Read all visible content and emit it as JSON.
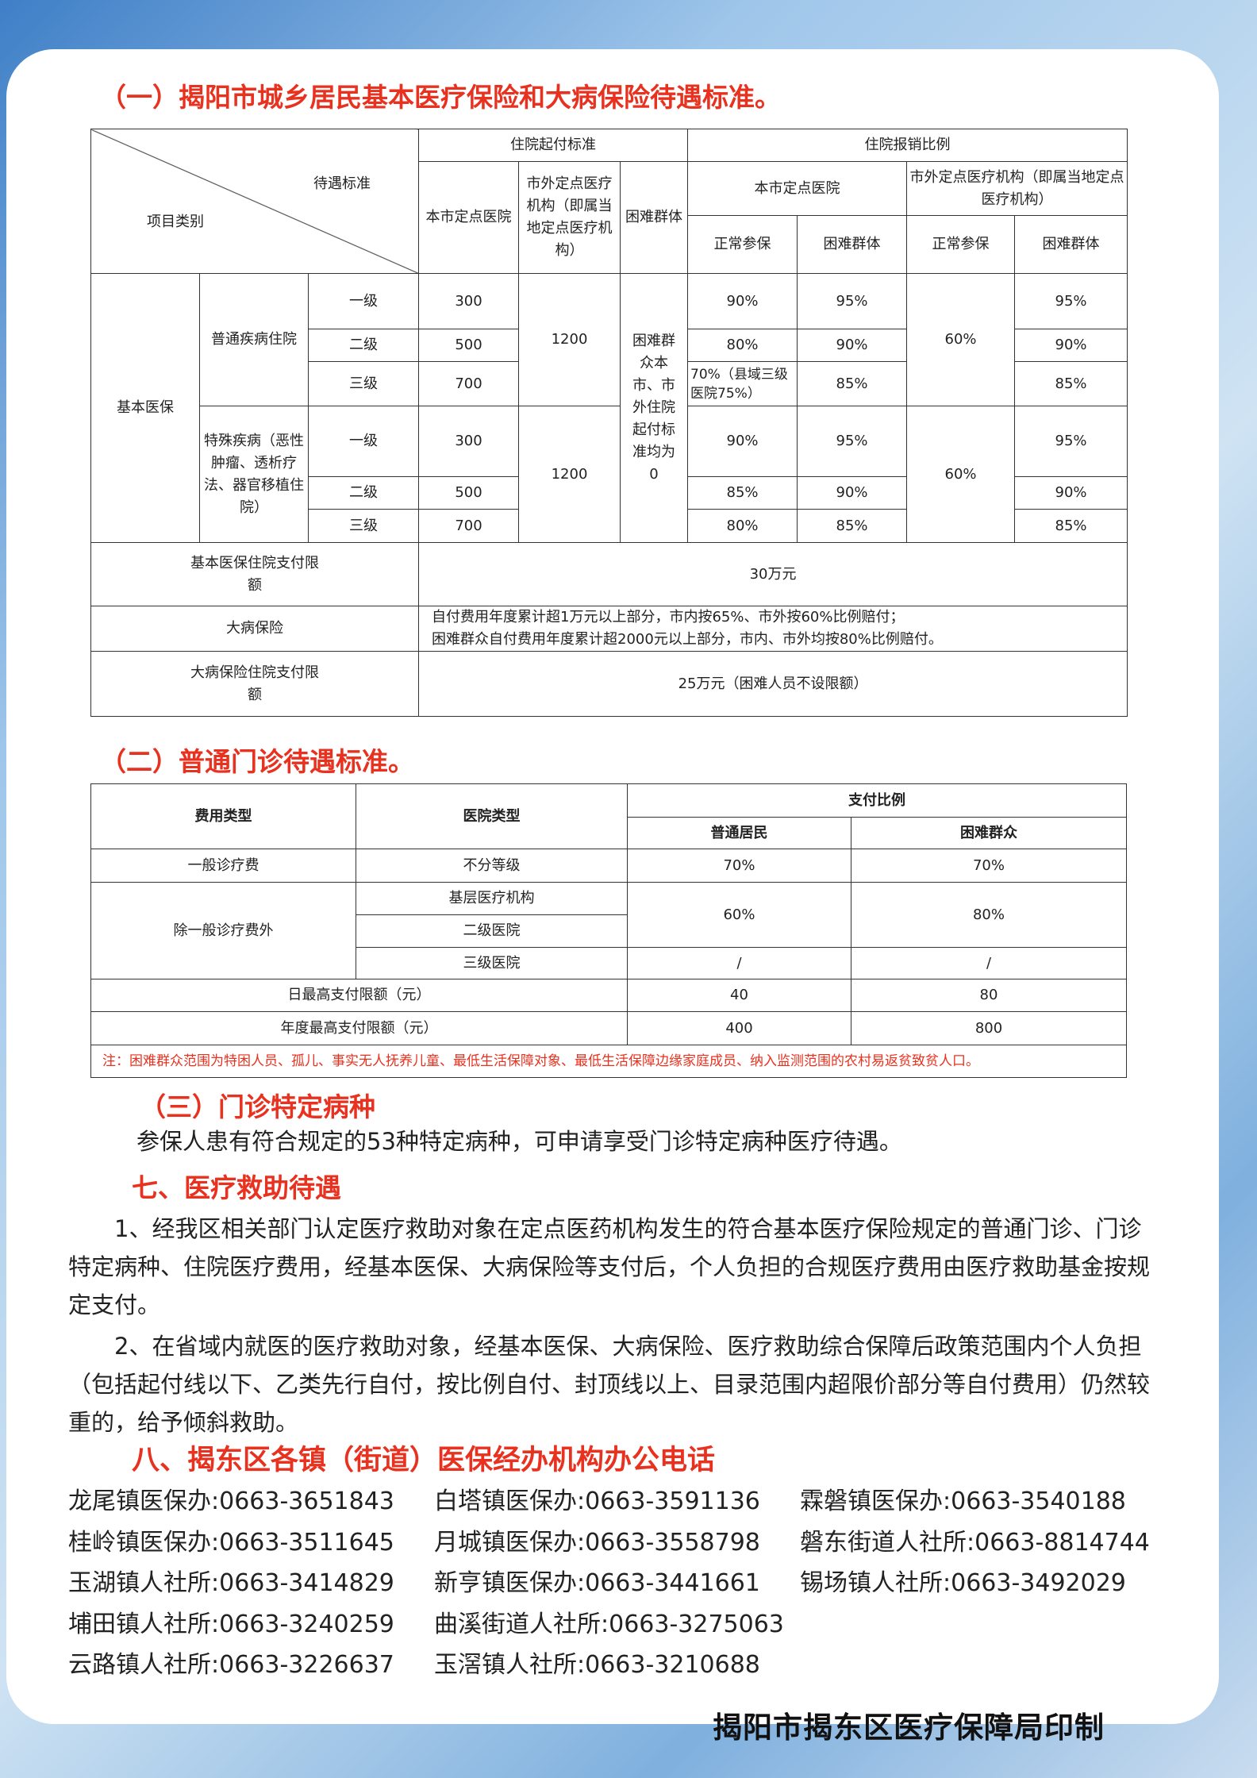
{
  "section1": {
    "title": "（一）揭阳市城乡居民基本医疗保险和大病保险待遇标准。",
    "diag_top": "待遇标准",
    "diag_bottom": "项目类别",
    "h_qifu": "住院起付标准",
    "h_baoxiao": "住院报销比例",
    "h_benshi": "本市定点医院",
    "h_shiwai": "市外定点医疗机构（即属当地定点医疗机构）",
    "h_kunnan": "困难群体",
    "h_benshi_r": "本市定点医院",
    "h_shiwai_r": "市外定点医疗机构（即属当地定点医疗机构）",
    "h_zc1": "正常参保",
    "h_kn1": "困难群体",
    "h_zc2": "正常参保",
    "h_kn2": "困难群体",
    "jiben": "基本医保",
    "putong": "普通疾病住院",
    "teshu": "特殊疾病（恶性肿瘤、透析疗法、器官移植住院）",
    "kunnan_note": "困难群众本市、市外住院起付标准均为0",
    "shiwai_qifu_1": "1200",
    "shiwai_qifu_2": "1200",
    "shiwai_zc_1": "60%",
    "shiwai_zc_2": "60%",
    "rows": [
      {
        "level": "一级",
        "benshi": "300",
        "zc": "90%",
        "kn": "95%",
        "kn2": "95%"
      },
      {
        "level": "二级",
        "benshi": "500",
        "zc": "80%",
        "kn": "90%",
        "kn2": "90%"
      },
      {
        "level": "三级",
        "benshi": "700",
        "zc": "70%（县域三级医院75%）",
        "kn": "85%",
        "kn2": "85%"
      },
      {
        "level": "一级",
        "benshi": "300",
        "zc": "90%",
        "kn": "95%",
        "kn2": "95%"
      },
      {
        "level": "二级",
        "benshi": "500",
        "zc": "85%",
        "kn": "90%",
        "kn2": "90%"
      },
      {
        "level": "三级",
        "benshi": "700",
        "zc": "80%",
        "kn": "85%",
        "kn2": "85%"
      }
    ],
    "limit_label": "基本医保住院支付限额",
    "limit_value": "30万元",
    "dabing_label": "大病保险",
    "dabing_line1": "自付费用年度累计超1万元以上部分，市内按65%、市外按60%比例赔付；",
    "dabing_line2": "困难群众自付费用年度累计超2000元以上部分，市内、市外均按80%比例赔付。",
    "dabing_limit_label": "大病保险住院支付限额",
    "dabing_limit_value": "25万元（困难人员不设限额）"
  },
  "section2": {
    "title": "（二）普通门诊待遇标准。",
    "h_type": "费用类型",
    "h_hosp": "医院类型",
    "h_ratio": "支付比例",
    "h_normal": "普通居民",
    "h_hard": "困难群众",
    "r1": {
      "type": "一般诊疗费",
      "hosp": "不分等级",
      "normal": "70%",
      "hard": "70%"
    },
    "r2_type": "除一般诊疗费外",
    "r2_h1": "基层医疗机构",
    "r2_h2": "二级医院",
    "r2_h3": "三级医院",
    "r2_normal": "60%",
    "r2_hard": "80%",
    "r2_n3": "/",
    "r2_k3": "/",
    "day_label": "日最高支付限额（元）",
    "day_normal": "40",
    "day_hard": "80",
    "year_label": "年度最高支付限额（元）",
    "year_normal": "400",
    "year_hard": "800",
    "note": "注：困难群众范围为特困人员、孤儿、事实无人抚养儿童、最低生活保障对象、最低生活保障边缘家庭成员、纳入监测范围的农村易返贫致贫人口。"
  },
  "section3": {
    "title": "（三）门诊特定病种",
    "text": "参保人患有符合规定的53种特定病种，可申请享受门诊特定病种医疗待遇。"
  },
  "section7": {
    "title": "七、医疗救助待遇",
    "p1": "1、经我区相关部门认定医疗救助对象在定点医药机构发生的符合基本医疗保险规定的普通门诊、门诊特定病种、住院医疗费用，经基本医保、大病保险等支付后，个人负担的合规医疗费用由医疗救助基金按规定支付。",
    "p2": "2、在省域内就医的医疗救助对象，经基本医保、大病保险、医疗救助综合保障后政策范围内个人负担（包括起付线以下、乙类先行自付，按比例自付、封顶线以上、目录范围内超限价部分等自付费用）仍然较重的，给予倾斜救助。"
  },
  "section8": {
    "title": "八、揭东区各镇（街道）医保经办机构办公电话",
    "phones": [
      [
        "龙尾镇医保办:0663-3651843",
        "白塔镇医保办:0663-3591136",
        "霖磐镇医保办:0663-3540188"
      ],
      [
        "桂岭镇医保办:0663-3511645",
        "月城镇医保办:0663-3558798",
        "磐东街道人社所:0663-8814744"
      ],
      [
        "玉湖镇人社所:0663-3414829",
        "新亨镇医保办:0663-3441661",
        "锡场镇人社所:0663-3492029"
      ],
      [
        "埔田镇人社所:0663-3240259",
        "曲溪街道人社所:0663-3275063",
        ""
      ],
      [
        "云路镇人社所:0663-3226637",
        "玉滘镇人社所:0663-3210688",
        ""
      ]
    ]
  },
  "footer": "揭阳市揭东区医疗保障局印制",
  "colors": {
    "heading": "#e8311f",
    "text": "#222222"
  }
}
